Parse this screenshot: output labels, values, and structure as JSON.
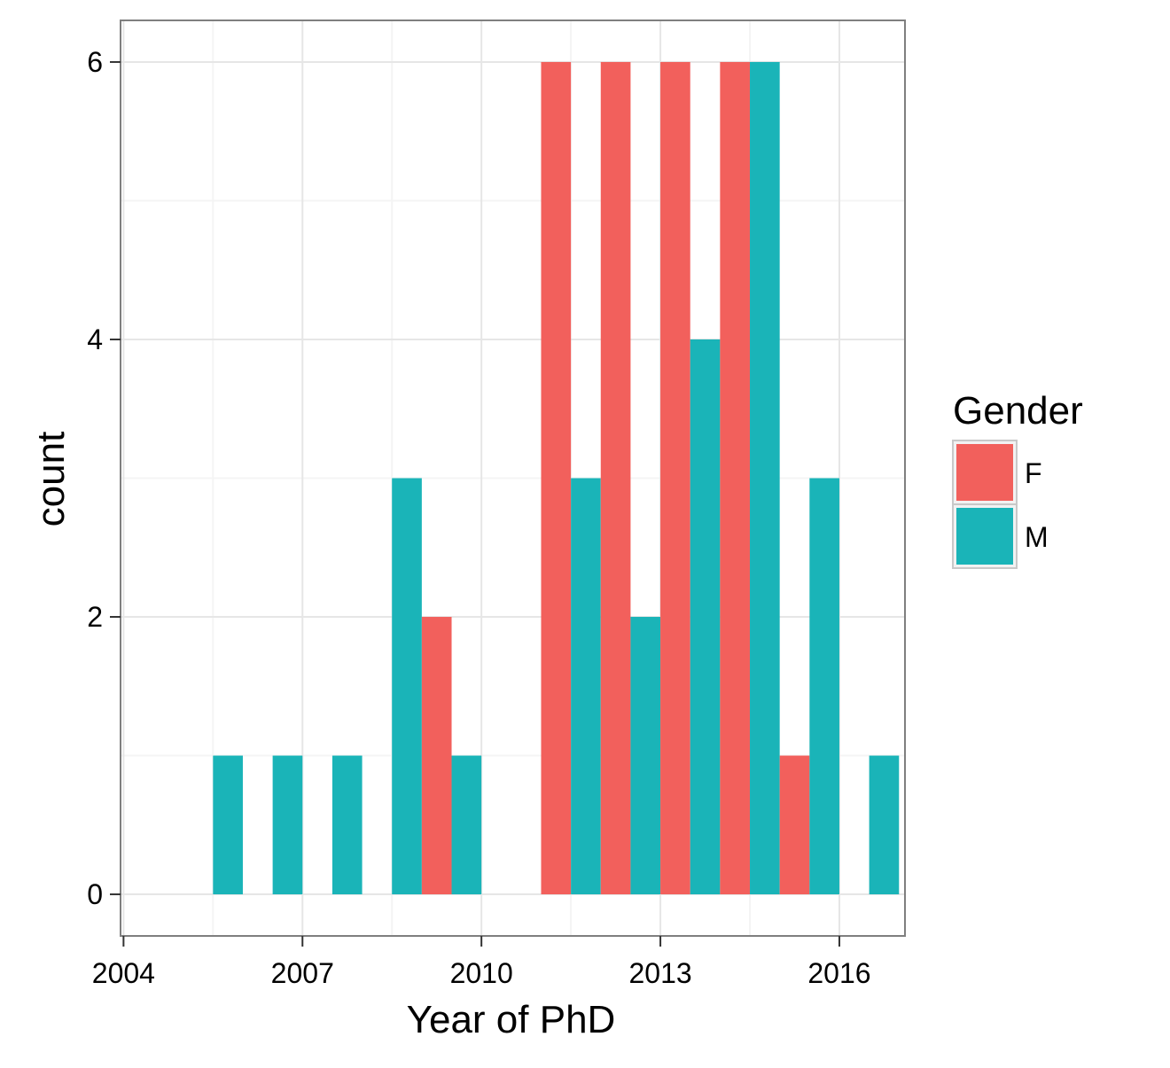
{
  "chart_data": {
    "type": "bar",
    "xlabel": "Year of PhD",
    "ylabel": "count",
    "xlim": [
      2003.95,
      2017.1
    ],
    "ylim": [
      -0.3,
      6.3
    ],
    "x_ticks": [
      2004,
      2007,
      2010,
      2013,
      2016
    ],
    "y_ticks": [
      0,
      2,
      4,
      6
    ],
    "grid": true,
    "legend": {
      "title": "Gender",
      "placement": "right",
      "entries": [
        {
          "key": "F",
          "label": "F"
        },
        {
          "key": "M",
          "label": "M"
        }
      ]
    },
    "colors": {
      "F": "#F2605C",
      "M": "#1AB4B8",
      "grid_major": "#E6E6E6",
      "grid_minor": "#F4F4F4",
      "panel_border": "#7F7F7F"
    },
    "bins": [
      2005.5,
      2006.5,
      2007.5,
      2008.5,
      2009.5,
      2010.5,
      2011.5,
      2012.5,
      2013.5,
      2014.5,
      2015.5,
      2016.5
    ],
    "bin_width": 1,
    "series": [
      {
        "name": "F",
        "values": [
          0,
          0,
          0,
          0,
          2,
          0,
          6,
          6,
          6,
          6,
          1,
          0
        ]
      },
      {
        "name": "M",
        "values": [
          1,
          1,
          1,
          3,
          1,
          0,
          3,
          2,
          4,
          6,
          3,
          1
        ]
      }
    ]
  }
}
